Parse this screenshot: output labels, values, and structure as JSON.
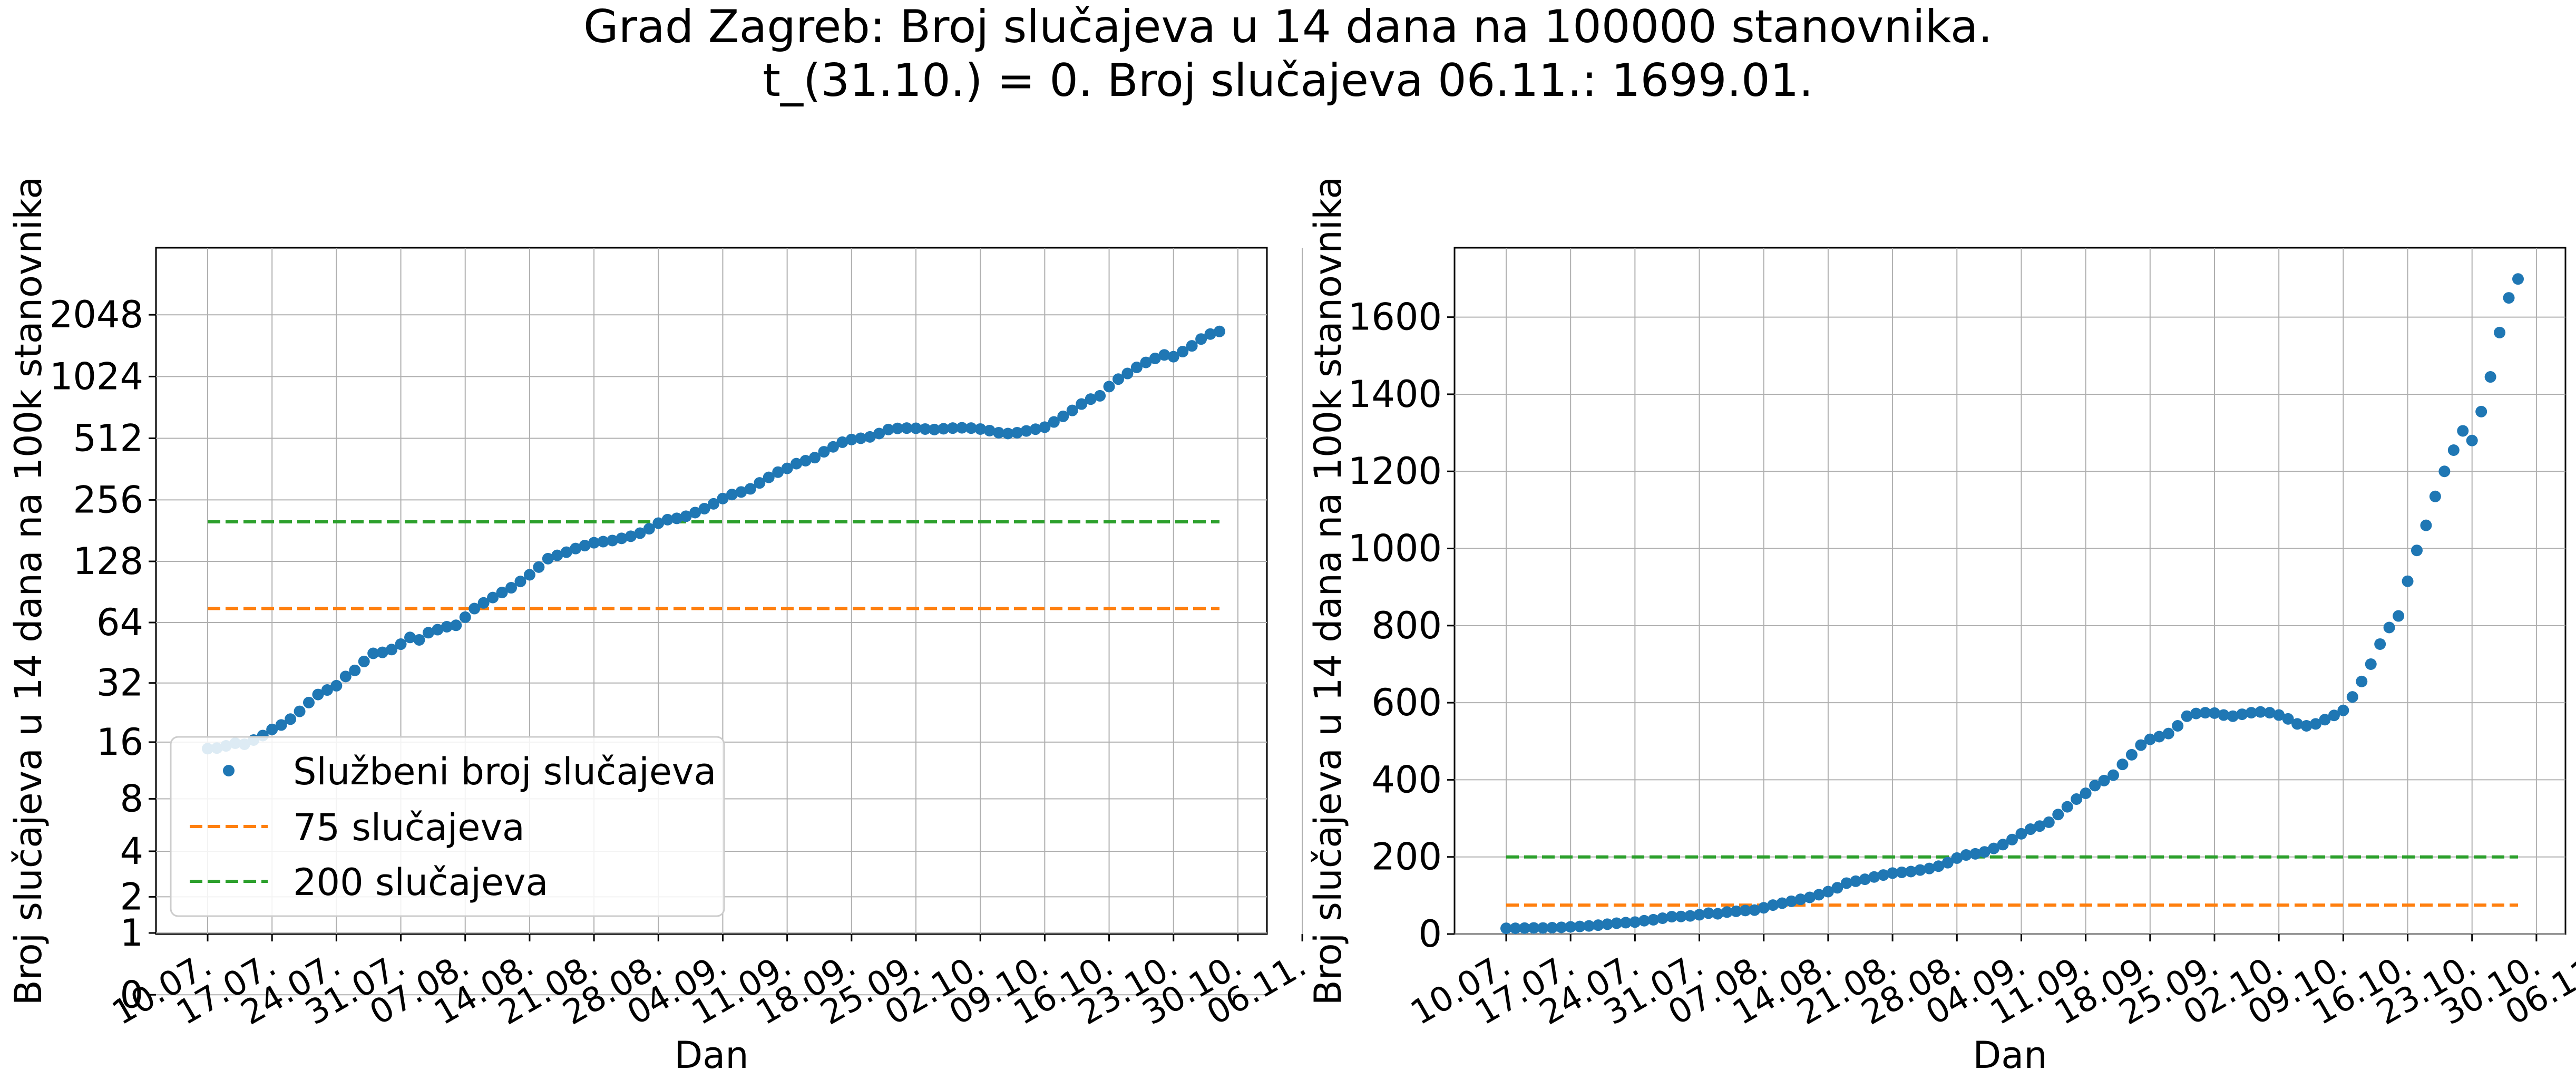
{
  "figure": {
    "title_line1": "Grad Zagreb: Broj slučajeva u 14 dana na 100000 stanovnika.",
    "title_line2": "t_(31.10.) = 0. Broj slučajeva 06.11.: 1699.01."
  },
  "colors": {
    "points": "#1f77b4",
    "line75": "#ff7f0e",
    "line200": "#2ca02c",
    "grid": "#b0b0b0"
  },
  "chart_data": [
    {
      "type": "scatter",
      "scale": "log2",
      "xlabel": "Dan",
      "ylabel": "Broj slučajeva u 14 dana na 100k stanovnika",
      "ylim": [
        0,
        2048
      ],
      "xticks": [
        "10.07.",
        "17.07.",
        "24.07.",
        "31.07.",
        "07.08.",
        "14.08.",
        "21.08.",
        "28.08.",
        "04.09.",
        "11.09.",
        "18.09.",
        "25.09.",
        "02.10.",
        "09.10.",
        "16.10.",
        "23.10.",
        "30.10.",
        "06.11."
      ],
      "yticks": [
        0,
        1,
        2,
        4,
        8,
        16,
        32,
        64,
        128,
        256,
        512,
        1024,
        2048
      ],
      "grid": true,
      "legend": {
        "placement": "lower-left",
        "entries": [
          "Službeni broj slučajeva",
          "75 slučajeva",
          "200 slučajeva"
        ]
      }
    },
    {
      "type": "scatter",
      "scale": "linear",
      "xlabel": "Dan",
      "ylabel": "Broj slučajeva u 14 dana na 100k stanovnika",
      "ylim": [
        0,
        1780
      ],
      "xticks": [
        "10.07.",
        "17.07.",
        "24.07.",
        "31.07.",
        "07.08.",
        "14.08.",
        "21.08.",
        "28.08.",
        "04.09.",
        "11.09.",
        "18.09.",
        "25.09.",
        "02.10.",
        "09.10.",
        "16.10.",
        "23.10.",
        "30.10.",
        "06.11."
      ],
      "yticks": [
        0,
        200,
        400,
        600,
        800,
        1000,
        1200,
        1400,
        1600
      ],
      "grid": true
    }
  ],
  "series": {
    "name": "Službeni broj slučajeva",
    "start_date": "10.07.",
    "values": [
      14.8,
      14.9,
      15.3,
      15.8,
      15.6,
      16.4,
      17.3,
      18.6,
      19.6,
      21.0,
      23.0,
      25.5,
      28.0,
      29.5,
      31.0,
      34.5,
      37.0,
      41.0,
      45.0,
      45.5,
      47.0,
      50.0,
      54.0,
      52.5,
      57.0,
      59.0,
      61.0,
      62.0,
      68.0,
      75.0,
      80.0,
      85.0,
      90.0,
      95.0,
      102.0,
      110.0,
      120.0,
      132.0,
      137.0,
      142.0,
      148.0,
      153.0,
      158.0,
      160.0,
      162.0,
      166.0,
      170.0,
      176.0,
      185.0,
      197.0,
      205.0,
      208.0,
      213.0,
      222.0,
      232.0,
      245.0,
      260.0,
      272.0,
      280.0,
      290.0,
      310.0,
      330.0,
      350.0,
      365.0,
      385.0,
      398.0,
      412.0,
      440.0,
      465.0,
      490.0,
      505.0,
      512.0,
      520.0,
      540.0,
      565.0,
      572.0,
      574.0,
      573.0,
      568.0,
      565.0,
      570.0,
      574.0,
      576.0,
      574.0,
      568.0,
      558.0,
      545.0,
      540.0,
      545.0,
      556.0,
      567.0,
      580.0,
      615.0,
      655.0,
      700.0,
      752.0,
      795.0,
      825.0,
      915.0,
      995.0,
      1060.0,
      1135.0,
      1200.0,
      1255.0,
      1305.0,
      1280.0,
      1355.0,
      1445.0,
      1560.0,
      1650.0,
      1699.01
    ]
  },
  "thresholds": [
    {
      "name": "75 slučajeva",
      "value": 75
    },
    {
      "name": "200 slučajeva",
      "value": 200
    }
  ]
}
